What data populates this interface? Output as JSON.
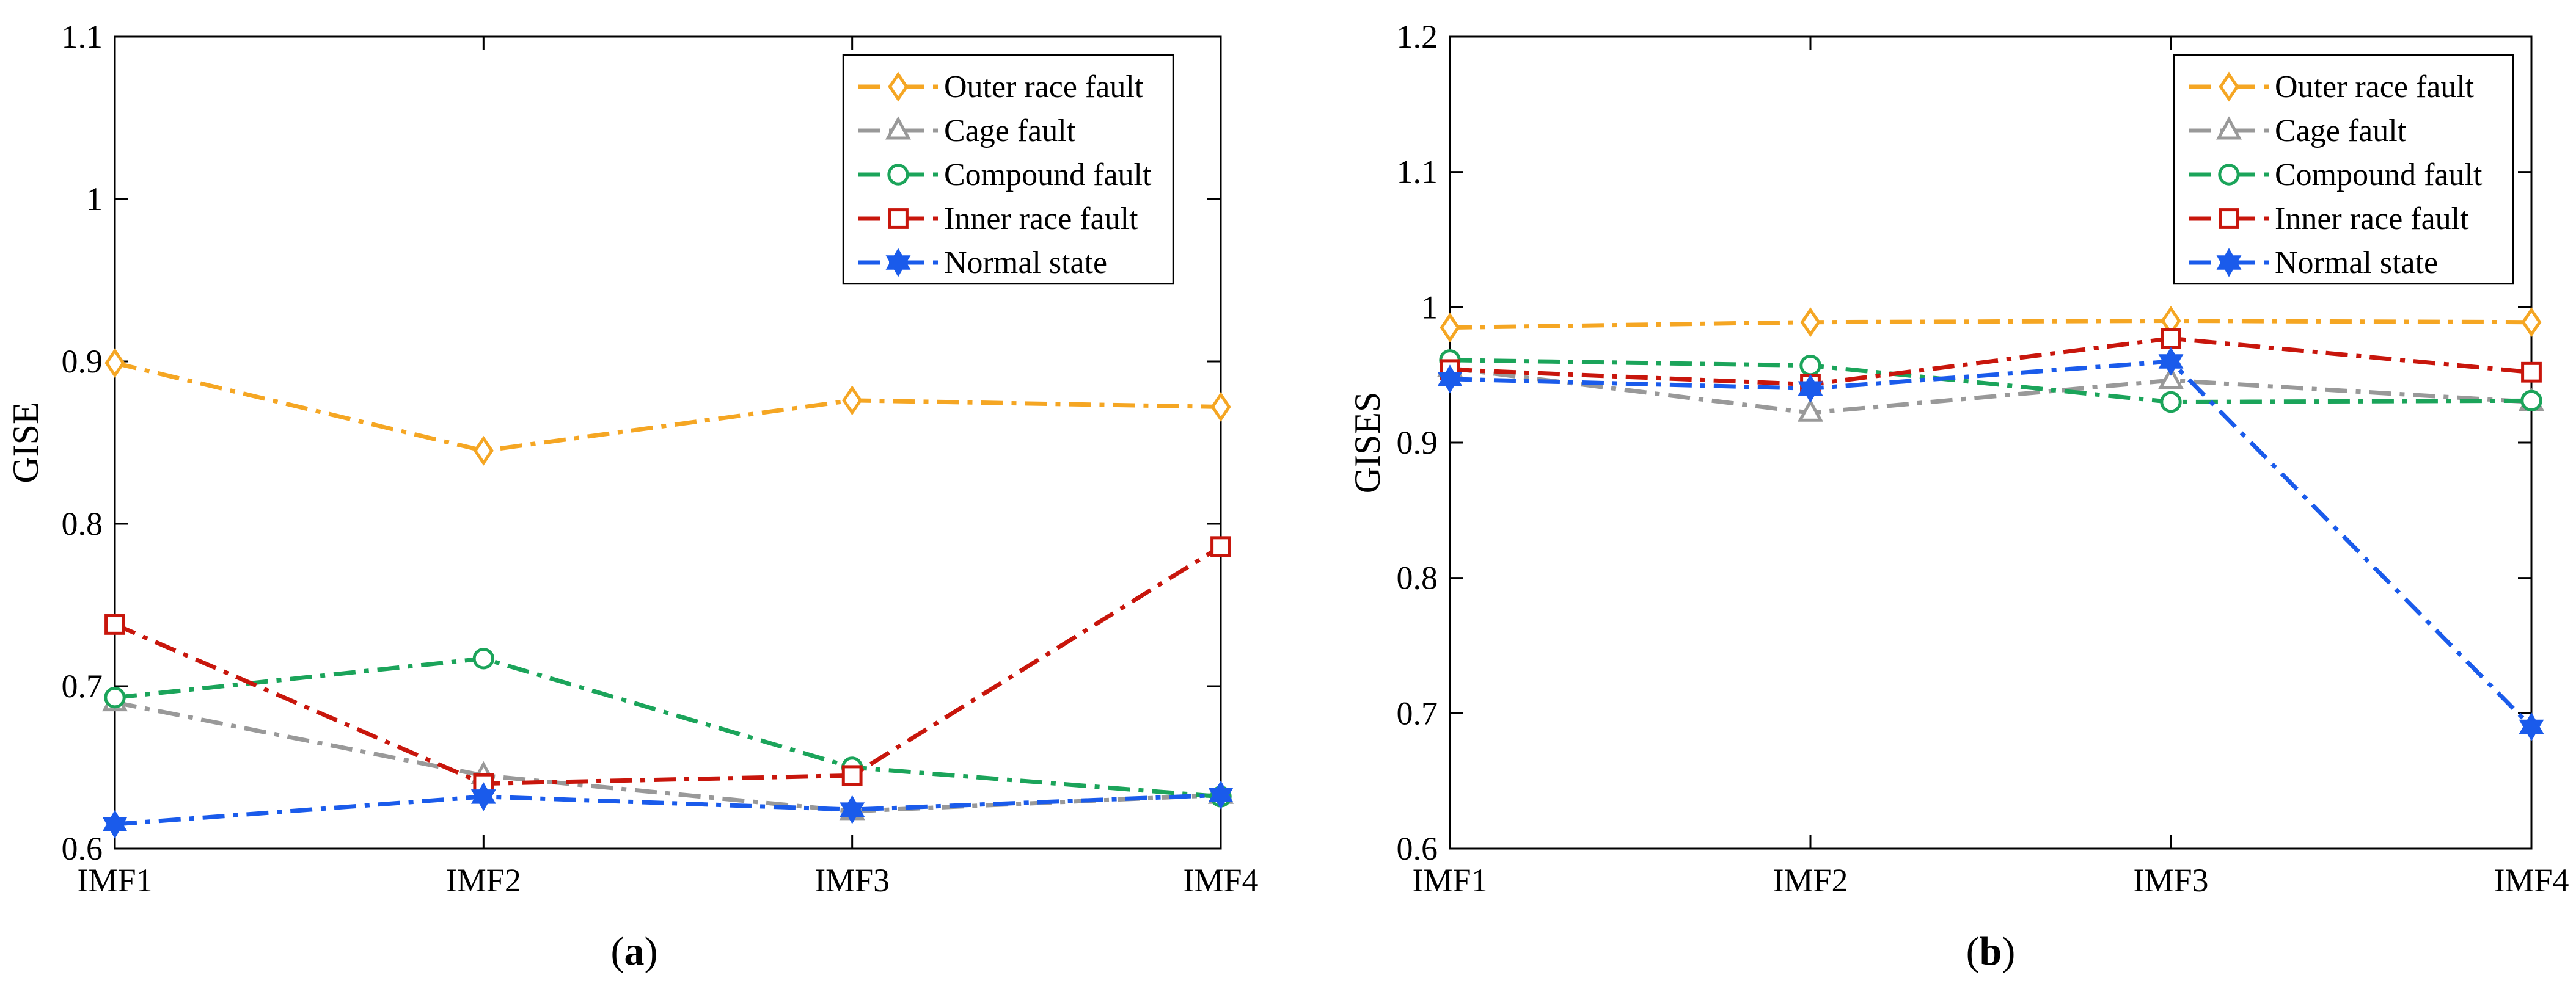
{
  "figure": {
    "panels": [
      {
        "label_open": "(",
        "label_letter": "a",
        "label_close": ")"
      },
      {
        "label_open": "(",
        "label_letter": "b",
        "label_close": ")"
      }
    ]
  },
  "chart_data": [
    {
      "type": "line",
      "title": "",
      "xlabel": "",
      "ylabel": "GISE",
      "categories": [
        "IMF1",
        "IMF2",
        "IMF3",
        "IMF4"
      ],
      "ylim": [
        0.6,
        1.1
      ],
      "yticks": [
        0.6,
        0.7,
        0.8,
        0.9,
        1,
        1.1
      ],
      "ytick_labels": [
        "0.6",
        "0.7",
        "0.8",
        "0.9",
        "1",
        "1.1"
      ],
      "grid": false,
      "legend_position": "top-right",
      "series": [
        {
          "name": "Outer race fault",
          "color": "#F5A623",
          "marker": "diamond",
          "values": [
            0.899,
            0.845,
            0.876,
            0.872
          ]
        },
        {
          "name": "Cage fault",
          "color": "#999999",
          "marker": "triangle",
          "values": [
            0.69,
            0.645,
            0.623,
            0.633
          ]
        },
        {
          "name": "Compound fault",
          "color": "#1BA45A",
          "marker": "circle",
          "values": [
            0.693,
            0.717,
            0.65,
            0.632
          ]
        },
        {
          "name": "Inner race fault",
          "color": "#C8160C",
          "marker": "square",
          "values": [
            0.738,
            0.64,
            0.645,
            0.786
          ]
        },
        {
          "name": "Normal state",
          "color": "#1A5BEB",
          "marker": "hexagram",
          "values": [
            0.615,
            0.632,
            0.624,
            0.633
          ]
        }
      ]
    },
    {
      "type": "line",
      "title": "",
      "xlabel": "",
      "ylabel": "GISES",
      "categories": [
        "IMF1",
        "IMF2",
        "IMF3",
        "IMF4"
      ],
      "ylim": [
        0.6,
        1.2
      ],
      "yticks": [
        0.6,
        0.7,
        0.8,
        0.9,
        1,
        1.1,
        1.2
      ],
      "ytick_labels": [
        "0.6",
        "0.7",
        "0.8",
        "0.9",
        "1",
        "1.1",
        "1.2"
      ],
      "grid": false,
      "legend_position": "top-right",
      "series": [
        {
          "name": "Outer race fault",
          "color": "#F5A623",
          "marker": "diamond",
          "values": [
            0.985,
            0.989,
            0.99,
            0.989
          ]
        },
        {
          "name": "Cage fault",
          "color": "#999999",
          "marker": "triangle",
          "values": [
            0.955,
            0.922,
            0.946,
            0.93
          ]
        },
        {
          "name": "Compound fault",
          "color": "#1BA45A",
          "marker": "circle",
          "values": [
            0.961,
            0.957,
            0.93,
            0.931
          ]
        },
        {
          "name": "Inner race fault",
          "color": "#C8160C",
          "marker": "square",
          "values": [
            0.954,
            0.943,
            0.977,
            0.952
          ]
        },
        {
          "name": "Normal state",
          "color": "#1A5BEB",
          "marker": "hexagram",
          "values": [
            0.947,
            0.94,
            0.96,
            0.69
          ]
        }
      ]
    }
  ]
}
